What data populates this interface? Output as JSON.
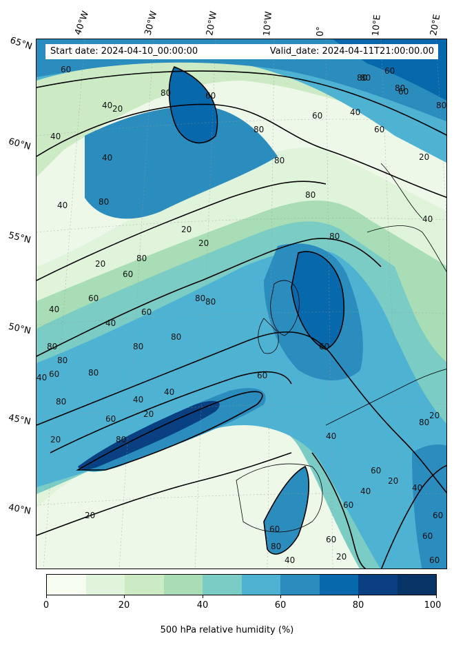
{
  "header": {
    "start_date": "Start date: 2024-04-10_00:00:00",
    "valid_date": "Valid_date: 2024-04-11T21:00:00.00"
  },
  "longitude_labels": [
    "40°W",
    "30°W",
    "20°W",
    "10°W",
    "0°",
    "10°E",
    "20°E"
  ],
  "latitude_labels": [
    "65°N",
    "60°N",
    "55°N",
    "50°N",
    "45°N",
    "40°N"
  ],
  "contour_labels": [
    "20",
    "40",
    "60",
    "80"
  ],
  "colorbar": {
    "title": "500 hPa relative humidity (%)",
    "ticks": [
      "0",
      "20",
      "40",
      "60",
      "80",
      "100"
    ],
    "colors": [
      "#f7fcf0",
      "#e0f3db",
      "#ccebc5",
      "#a8ddb5",
      "#7bccc4",
      "#4eb3d3",
      "#2b8cbe",
      "#0868ac",
      "#084081",
      "#083468"
    ]
  }
}
